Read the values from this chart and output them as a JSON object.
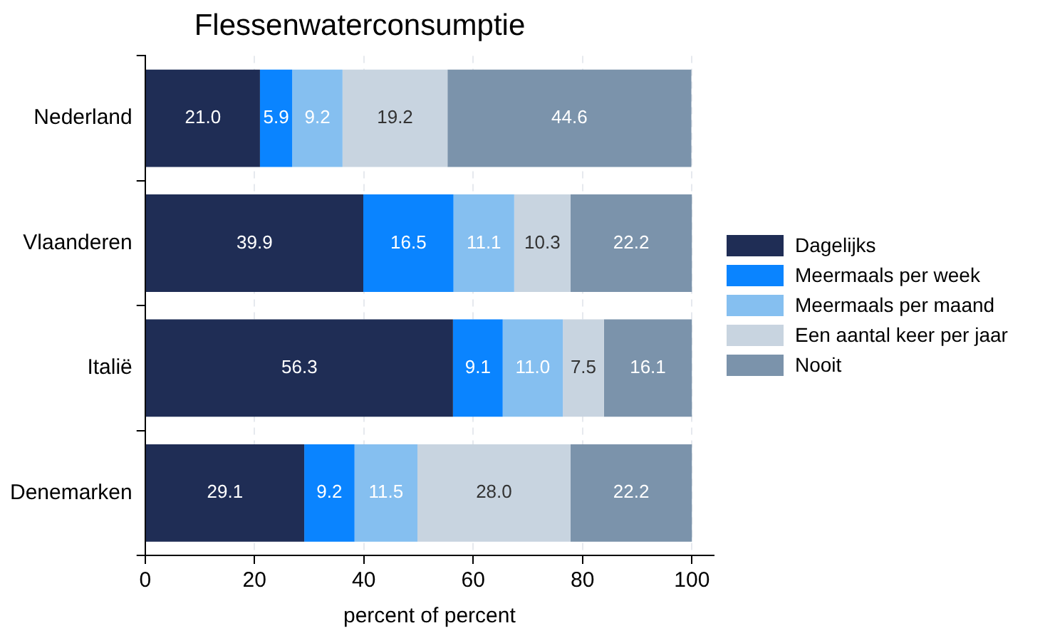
{
  "chart_data": {
    "type": "bar",
    "orientation": "horizontal",
    "stacked": true,
    "title": "Flessenwaterconsumptie",
    "xlabel": "percent of percent",
    "categories": [
      "Nederland",
      "Vlaanderen",
      "Italië",
      "Denemarken"
    ],
    "series": [
      {
        "name": "Dagelijks",
        "color": "#1f2d55",
        "values": [
          21.0,
          39.9,
          56.3,
          29.1
        ],
        "value_labels": [
          "21.0",
          "39.9",
          "56.3",
          "29.1"
        ]
      },
      {
        "name": "Meermaals per week",
        "color": "#0a84ff",
        "values": [
          5.9,
          16.5,
          9.1,
          9.2
        ],
        "value_labels": [
          "5.9",
          "16.5",
          "9.1",
          "9.2"
        ]
      },
      {
        "name": "Meermaals per maand",
        "color": "#85bff0",
        "values": [
          9.2,
          11.1,
          11.0,
          11.5
        ],
        "value_labels": [
          "9.2",
          "11.1",
          "11.0",
          "11.5"
        ]
      },
      {
        "name": "Een aantal keer per jaar",
        "color": "#c8d4e0",
        "values": [
          19.2,
          10.3,
          7.5,
          28.0
        ],
        "value_labels": [
          "19.2",
          "10.3",
          "7.5",
          "28.0"
        ]
      },
      {
        "name": "Nooit",
        "color": "#7b93ab",
        "values": [
          44.6,
          22.2,
          16.1,
          22.2
        ],
        "value_labels": [
          "44.6",
          "22.2",
          "16.1",
          "22.2"
        ]
      }
    ],
    "xlim": [
      0,
      104
    ],
    "xticks": [
      0,
      20,
      40,
      60,
      80,
      100
    ],
    "grid": "x",
    "legend": "right"
  }
}
